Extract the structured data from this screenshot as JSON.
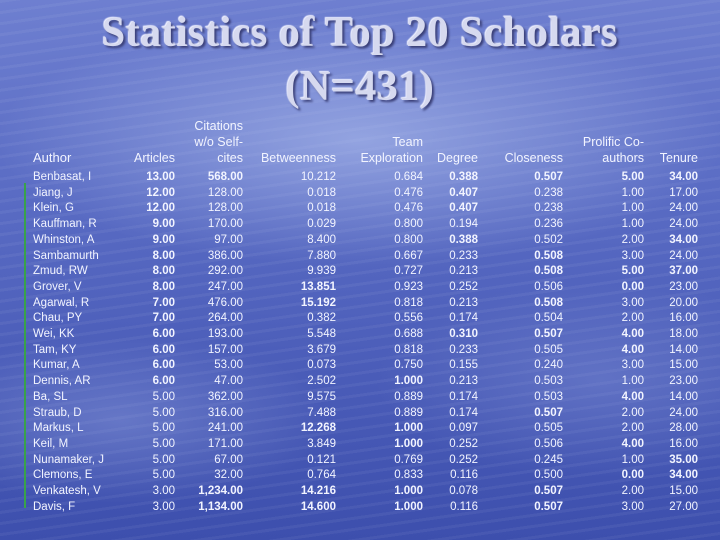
{
  "title": {
    "line1": "Statistics of Top 20 Scholars",
    "line2": "(N=431)"
  },
  "table": {
    "headers": [
      {
        "key": "author",
        "lines": [
          "",
          "",
          "Author"
        ]
      },
      {
        "key": "articles",
        "lines": [
          "",
          "",
          "Articles"
        ]
      },
      {
        "key": "citations",
        "lines": [
          "Citations",
          "w/o Self-",
          "cites"
        ]
      },
      {
        "key": "betweenness",
        "lines": [
          "",
          "",
          "Betweenness"
        ]
      },
      {
        "key": "team",
        "lines": [
          "",
          "Team",
          "Exploration"
        ]
      },
      {
        "key": "degree",
        "lines": [
          "",
          "",
          "Degree"
        ]
      },
      {
        "key": "closeness",
        "lines": [
          "",
          "",
          "Closeness"
        ]
      },
      {
        "key": "prolific",
        "lines": [
          "",
          "Prolific Co-",
          "authors"
        ]
      },
      {
        "key": "tenure",
        "lines": [
          "",
          "",
          "Tenure"
        ]
      }
    ],
    "rows": [
      {
        "author": "Benbasat, I",
        "articles": "13.00",
        "citations": "568.00",
        "betweenness": "10.212",
        "team": "0.684",
        "degree": "0.388",
        "closeness": "0.507",
        "prolific": "5.00",
        "tenure": "34.00",
        "bold": [
          "articles",
          "citations",
          "degree",
          "closeness",
          "prolific",
          "tenure"
        ]
      },
      {
        "author": "Jiang, J",
        "articles": "12.00",
        "citations": "128.00",
        "betweenness": "0.018",
        "team": "0.476",
        "degree": "0.407",
        "closeness": "0.238",
        "prolific": "1.00",
        "tenure": "17.00",
        "bold": [
          "articles",
          "degree"
        ]
      },
      {
        "author": "Klein, G",
        "articles": "12.00",
        "citations": "128.00",
        "betweenness": "0.018",
        "team": "0.476",
        "degree": "0.407",
        "closeness": "0.238",
        "prolific": "1.00",
        "tenure": "24.00",
        "bold": [
          "articles",
          "degree"
        ]
      },
      {
        "author": "Kauffman, R",
        "articles": "9.00",
        "citations": "170.00",
        "betweenness": "0.029",
        "team": "0.800",
        "degree": "0.194",
        "closeness": "0.236",
        "prolific": "1.00",
        "tenure": "24.00",
        "bold": [
          "articles"
        ]
      },
      {
        "author": "Whinston, A",
        "articles": "9.00",
        "citations": "97.00",
        "betweenness": "8.400",
        "team": "0.800",
        "degree": "0.388",
        "closeness": "0.502",
        "prolific": "2.00",
        "tenure": "34.00",
        "bold": [
          "articles",
          "degree",
          "tenure"
        ]
      },
      {
        "author": "Sambamurth",
        "articles": "8.00",
        "citations": "386.00",
        "betweenness": "7.880",
        "team": "0.667",
        "degree": "0.233",
        "closeness": "0.508",
        "prolific": "3.00",
        "tenure": "24.00",
        "bold": [
          "articles",
          "closeness"
        ]
      },
      {
        "author": "Zmud, RW",
        "articles": "8.00",
        "citations": "292.00",
        "betweenness": "9.939",
        "team": "0.727",
        "degree": "0.213",
        "closeness": "0.508",
        "prolific": "5.00",
        "tenure": "37.00",
        "bold": [
          "articles",
          "closeness",
          "prolific",
          "tenure"
        ]
      },
      {
        "author": "Grover, V",
        "articles": "8.00",
        "citations": "247.00",
        "betweenness": "13.851",
        "team": "0.923",
        "degree": "0.252",
        "closeness": "0.506",
        "prolific": "0.00",
        "tenure": "23.00",
        "bold": [
          "articles",
          "betweenness",
          "prolific"
        ]
      },
      {
        "author": "Agarwal, R",
        "articles": "7.00",
        "citations": "476.00",
        "betweenness": "15.192",
        "team": "0.818",
        "degree": "0.213",
        "closeness": "0.508",
        "prolific": "3.00",
        "tenure": "20.00",
        "bold": [
          "articles",
          "betweenness",
          "closeness"
        ]
      },
      {
        "author": "Chau, PY",
        "articles": "7.00",
        "citations": "264.00",
        "betweenness": "0.382",
        "team": "0.556",
        "degree": "0.174",
        "closeness": "0.504",
        "prolific": "2.00",
        "tenure": "16.00",
        "bold": [
          "articles"
        ]
      },
      {
        "author": "Wei, KK",
        "articles": "6.00",
        "citations": "193.00",
        "betweenness": "5.548",
        "team": "0.688",
        "degree": "0.310",
        "closeness": "0.507",
        "prolific": "4.00",
        "tenure": "18.00",
        "bold": [
          "articles",
          "degree",
          "closeness",
          "prolific"
        ]
      },
      {
        "author": "Tam, KY",
        "articles": "6.00",
        "citations": "157.00",
        "betweenness": "3.679",
        "team": "0.818",
        "degree": "0.233",
        "closeness": "0.505",
        "prolific": "4.00",
        "tenure": "14.00",
        "bold": [
          "articles",
          "prolific"
        ]
      },
      {
        "author": "Kumar, A",
        "articles": "6.00",
        "citations": "53.00",
        "betweenness": "0.073",
        "team": "0.750",
        "degree": "0.155",
        "closeness": "0.240",
        "prolific": "3.00",
        "tenure": "15.00",
        "bold": [
          "articles"
        ]
      },
      {
        "author": "Dennis, AR",
        "articles": "6.00",
        "citations": "47.00",
        "betweenness": "2.502",
        "team": "1.000",
        "degree": "0.213",
        "closeness": "0.503",
        "prolific": "1.00",
        "tenure": "23.00",
        "bold": [
          "articles",
          "team"
        ]
      },
      {
        "author": "Ba, SL",
        "articles": "5.00",
        "citations": "362.00",
        "betweenness": "9.575",
        "team": "0.889",
        "degree": "0.174",
        "closeness": "0.503",
        "prolific": "4.00",
        "tenure": "14.00",
        "bold": [
          "prolific"
        ]
      },
      {
        "author": "Straub, D",
        "articles": "5.00",
        "citations": "316.00",
        "betweenness": "7.488",
        "team": "0.889",
        "degree": "0.174",
        "closeness": "0.507",
        "prolific": "2.00",
        "tenure": "24.00",
        "bold": [
          "closeness"
        ]
      },
      {
        "author": "Markus, L",
        "articles": "5.00",
        "citations": "241.00",
        "betweenness": "12.268",
        "team": "1.000",
        "degree": "0.097",
        "closeness": "0.505",
        "prolific": "2.00",
        "tenure": "28.00",
        "bold": [
          "betweenness",
          "team"
        ]
      },
      {
        "author": "Keil, M",
        "articles": "5.00",
        "citations": "171.00",
        "betweenness": "3.849",
        "team": "1.000",
        "degree": "0.252",
        "closeness": "0.506",
        "prolific": "4.00",
        "tenure": "16.00",
        "bold": [
          "team",
          "prolific"
        ]
      },
      {
        "author": "Nunamaker, J",
        "articles": "5.00",
        "citations": "67.00",
        "betweenness": "0.121",
        "team": "0.769",
        "degree": "0.252",
        "closeness": "0.245",
        "prolific": "1.00",
        "tenure": "35.00",
        "bold": [
          "tenure"
        ]
      },
      {
        "author": "Clemons, E",
        "articles": "5.00",
        "citations": "32.00",
        "betweenness": "0.764",
        "team": "0.833",
        "degree": "0.116",
        "closeness": "0.500",
        "prolific": "0.00",
        "tenure": "34.00",
        "bold": [
          "prolific",
          "tenure"
        ]
      },
      {
        "author": "Venkatesh, V",
        "articles": "3.00",
        "citations": "1,234.00",
        "betweenness": "14.216",
        "team": "1.000",
        "degree": "0.078",
        "closeness": "0.507",
        "prolific": "2.00",
        "tenure": "15.00",
        "bold": [
          "citations",
          "betweenness",
          "team",
          "closeness"
        ]
      },
      {
        "author": "Davis, F",
        "articles": "3.00",
        "citations": "1,134.00",
        "betweenness": "14.600",
        "team": "1.000",
        "degree": "0.116",
        "closeness": "0.507",
        "prolific": "3.00",
        "tenure": "27.00",
        "bold": [
          "citations",
          "betweenness",
          "team",
          "closeness"
        ]
      }
    ]
  }
}
